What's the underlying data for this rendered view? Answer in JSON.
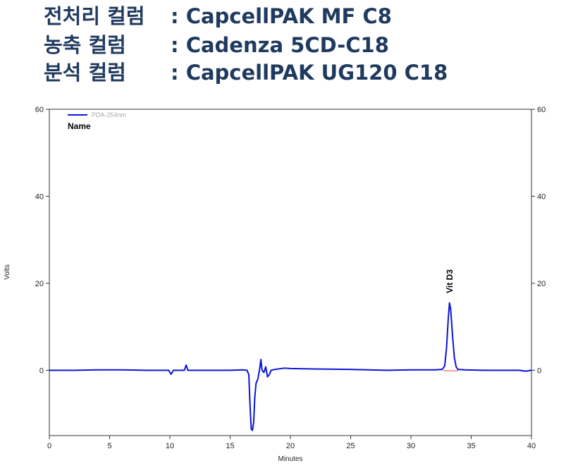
{
  "header": [
    {
      "label": "전처리 컬럼",
      "value": ": CapcellPAK MF C8"
    },
    {
      "label": "농축 컬럼",
      "value": ": Cadenza 5CD-C18"
    },
    {
      "label": "분석 컬럼",
      "value": ": CapcellPAK UG120 C18"
    }
  ],
  "chart_data": {
    "type": "line",
    "xlabel": "Minutes",
    "ylabel": "Volts",
    "legend_title": "Name",
    "annotation": "Vit D3",
    "xlim": [
      0,
      40
    ],
    "xticks": [
      0,
      5,
      10,
      15,
      20,
      25,
      30,
      35,
      40
    ],
    "ylim": [
      -15,
      60
    ],
    "yticks": [
      0,
      20,
      40,
      60
    ],
    "series": [
      {
        "name": "PDA-254nm",
        "color": "#0a14d8",
        "x": [
          0,
          2,
          4,
          6,
          8,
          9.9,
          10.1,
          10.3,
          11.2,
          11.35,
          11.5,
          15,
          16,
          16.4,
          16.55,
          16.65,
          16.75,
          16.85,
          16.95,
          17.05,
          17.15,
          17.3,
          17.45,
          17.55,
          17.65,
          17.8,
          17.95,
          18.1,
          18.25,
          18.4,
          18.7,
          19.5,
          20,
          22,
          25,
          28,
          30,
          32,
          32.6,
          32.8,
          32.95,
          33.1,
          33.2,
          33.3,
          33.45,
          33.6,
          33.75,
          33.9,
          34.5,
          36,
          38,
          39,
          39.5,
          40
        ],
        "values": [
          0,
          0,
          0.1,
          0.1,
          0,
          0,
          -0.9,
          0,
          0,
          1.2,
          0,
          0,
          0.1,
          0,
          -1,
          -8,
          -13.5,
          -13.8,
          -12,
          -6,
          -3,
          -2,
          0.3,
          2.5,
          0,
          -0.5,
          0.8,
          -1.5,
          -1,
          0,
          0.2,
          0.5,
          0.4,
          0.3,
          0.2,
          0,
          0.1,
          0.1,
          0.2,
          1,
          5,
          12,
          15.5,
          14,
          8,
          3,
          0.8,
          0.2,
          0.1,
          0,
          0,
          0,
          -0.2,
          0
        ]
      }
    ]
  }
}
